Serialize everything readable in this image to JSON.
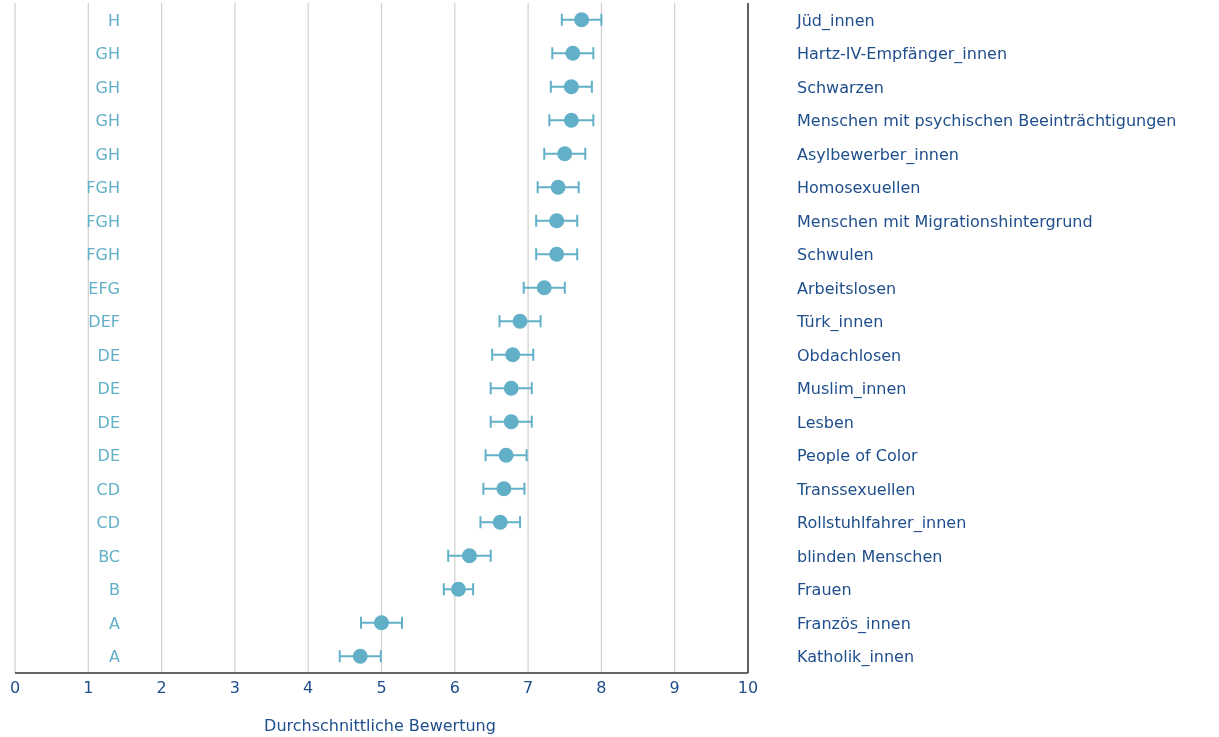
{
  "chart_data": {
    "type": "scatter",
    "orientation": "horizontal",
    "xlabel": "Durchschnittliche Bewertung",
    "categories": [
      "Jüd_innen",
      "Hartz-IV-Empfänger_innen",
      "Schwarzen",
      "Menschen mit psychischen Beeinträchtigungen",
      "Asylbewerber_innen",
      "Homosexuellen",
      "Menschen mit Migrationshintergrund",
      "Schwulen",
      "Arbeitslosen",
      "Türk_innen",
      "Obdachlosen",
      "Muslim_innen",
      "Lesben",
      "People of Color",
      "Transsexuellen",
      "Rollstuhlfahrer_innen",
      "blinden Menschen",
      "Frauen",
      "Französ_innen",
      "Katholik_innen"
    ],
    "series": [
      {
        "color": "#62b0c8",
        "values": [
          7.73,
          7.61,
          7.59,
          7.59,
          7.5,
          7.41,
          7.39,
          7.39,
          7.22,
          6.89,
          6.79,
          6.77,
          6.77,
          6.7,
          6.67,
          6.62,
          6.2,
          6.05,
          5.0,
          4.71
        ],
        "errors": [
          0.27,
          0.28,
          0.28,
          0.3,
          0.28,
          0.28,
          0.28,
          0.28,
          0.28,
          0.28,
          0.28,
          0.28,
          0.28,
          0.28,
          0.28,
          0.27,
          0.29,
          0.2,
          0.28,
          0.28
        ]
      }
    ],
    "xlim": [
      0,
      10
    ],
    "xticks": [
      0,
      1,
      2,
      3,
      4,
      5,
      6,
      7,
      8,
      9,
      10
    ],
    "grid": "x",
    "marker": "circle",
    "annotations": [
      "H",
      "GH",
      "GH",
      "GH",
      "GH",
      "FGH",
      "FGH",
      "FGH",
      "EFG",
      "DEF",
      "DE",
      "DE",
      "DE",
      "DE",
      "CD",
      "CD",
      "BC",
      "B",
      "A",
      "A"
    ]
  }
}
